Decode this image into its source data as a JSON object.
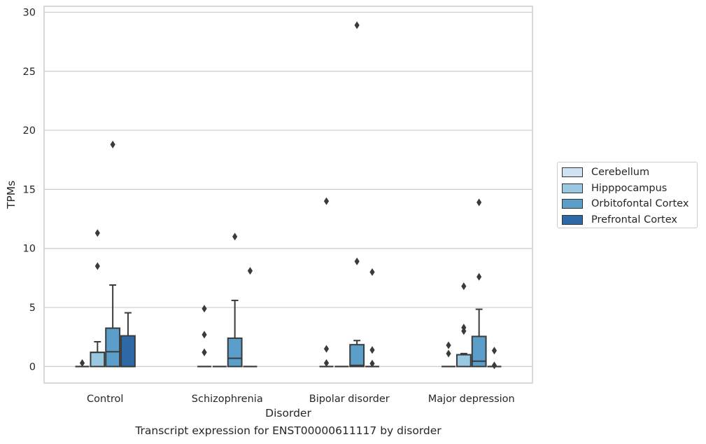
{
  "caption": "Transcript expression for ENST00000611117 by disorder",
  "chart_data": {
    "type": "box",
    "xlabel": "Disorder",
    "ylabel": "TPMs",
    "ylim": [
      -1.4,
      30.5
    ],
    "yticks": [
      0,
      5,
      10,
      15,
      20,
      25,
      30
    ],
    "grid": true,
    "legend_position": "right",
    "categories": [
      "Control",
      "Schizophrenia",
      "Bipolar disorder",
      "Major depression"
    ],
    "series": [
      {
        "name": "Cerebellum",
        "color": "#d0e2f2",
        "boxes": [
          {
            "q1": 0,
            "median": 0,
            "q3": 0,
            "whisker_low": 0,
            "whisker_high": 0,
            "outliers": [
              0.3
            ]
          },
          {
            "q1": 0,
            "median": 0,
            "q3": 0,
            "whisker_low": 0,
            "whisker_high": 0,
            "outliers": [
              1.2,
              1.2,
              2.7,
              4.9
            ]
          },
          {
            "q1": 0,
            "median": 0,
            "q3": 0,
            "whisker_low": 0,
            "whisker_high": 0,
            "outliers": [
              0.3,
              1.5,
              14.0
            ]
          },
          {
            "q1": 0,
            "median": 0,
            "q3": 0,
            "whisker_low": 0,
            "whisker_high": 0,
            "outliers": [
              1.1,
              1.8
            ]
          }
        ]
      },
      {
        "name": "Hipppocampus",
        "color": "#9ac8e0",
        "boxes": [
          {
            "q1": 0,
            "median": 1.2,
            "q3": 1.2,
            "whisker_low": 0,
            "whisker_high": 2.1,
            "outliers": [
              8.5,
              11.3
            ]
          },
          {
            "q1": 0,
            "median": 0,
            "q3": 0,
            "whisker_low": 0,
            "whisker_high": 0,
            "outliers": []
          },
          {
            "q1": 0,
            "median": 0,
            "q3": 0,
            "whisker_low": 0,
            "whisker_high": 0,
            "outliers": []
          },
          {
            "q1": 0,
            "median": 1.0,
            "q3": 1.0,
            "whisker_low": 0,
            "whisker_high": 1.1,
            "outliers": [
              3.0,
              3.3,
              6.8
            ]
          }
        ]
      },
      {
        "name": "Orbitofontal Cortex",
        "color": "#5a9ec9",
        "boxes": [
          {
            "q1": 0,
            "median": 1.25,
            "q3": 3.25,
            "whisker_low": 0,
            "whisker_high": 6.9,
            "outliers": [
              18.8
            ]
          },
          {
            "q1": 0,
            "median": 0.7,
            "q3": 2.4,
            "whisker_low": 0,
            "whisker_high": 5.6,
            "outliers": [
              11.0
            ]
          },
          {
            "q1": 0,
            "median": 0.1,
            "q3": 1.85,
            "whisker_low": 0,
            "whisker_high": 2.2,
            "outliers": [
              8.9,
              28.9
            ]
          },
          {
            "q1": 0,
            "median": 0.45,
            "q3": 2.55,
            "whisker_low": 0,
            "whisker_high": 4.85,
            "outliers": [
              7.6,
              13.9
            ]
          }
        ]
      },
      {
        "name": "Prefrontal Cortex",
        "color": "#2c69a6",
        "boxes": [
          {
            "q1": 0,
            "median": 0,
            "q3": 2.6,
            "whisker_low": 0,
            "whisker_high": 4.55,
            "outliers": []
          },
          {
            "q1": 0,
            "median": 0,
            "q3": 0,
            "whisker_low": 0,
            "whisker_high": 0,
            "outliers": [
              8.1
            ]
          },
          {
            "q1": 0,
            "median": 0,
            "q3": 0,
            "whisker_low": 0,
            "whisker_high": 0,
            "outliers": [
              0.25,
              1.4,
              8.0
            ]
          },
          {
            "q1": 0,
            "median": 0,
            "q3": 0,
            "whisker_low": 0,
            "whisker_high": 0,
            "outliers": [
              0.1,
              1.35
            ]
          }
        ]
      }
    ]
  }
}
